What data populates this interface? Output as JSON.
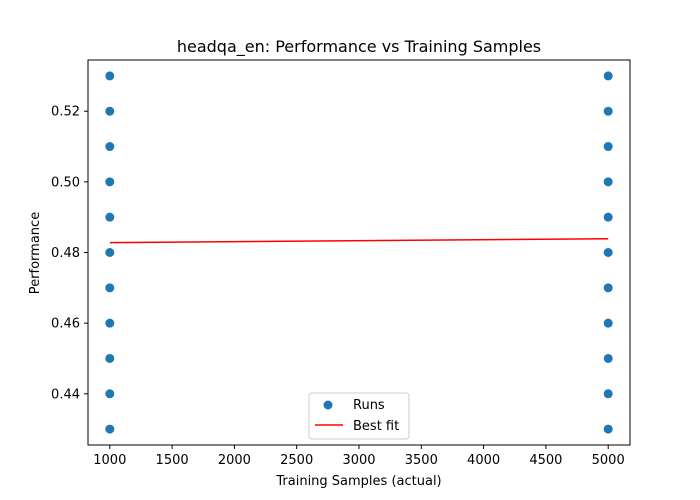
{
  "chart_data": {
    "type": "scatter",
    "title": "headqa_en: Performance vs Training Samples",
    "xlabel": "Training Samples (actual)",
    "ylabel": "Performance",
    "xlim": [
      825,
      5175
    ],
    "ylim": [
      0.4255,
      0.5345
    ],
    "xticks": [
      1000,
      1500,
      2000,
      2500,
      3000,
      3500,
      4000,
      4500,
      5000
    ],
    "yticks": [
      0.44,
      0.46,
      0.48,
      0.5,
      0.52
    ],
    "ytick_labels": [
      "0.44",
      "0.46",
      "0.48",
      "0.50",
      "0.52"
    ],
    "grid": false,
    "legend_position": "lower center",
    "series": [
      {
        "name": "Runs",
        "kind": "scatter",
        "color": "#1f77b4",
        "points": [
          [
            1000,
            0.53
          ],
          [
            1000,
            0.52
          ],
          [
            1000,
            0.51
          ],
          [
            1000,
            0.5
          ],
          [
            1000,
            0.49
          ],
          [
            1000,
            0.48
          ],
          [
            1000,
            0.47
          ],
          [
            1000,
            0.46
          ],
          [
            1000,
            0.45
          ],
          [
            1000,
            0.44
          ],
          [
            1000,
            0.43
          ],
          [
            5000,
            0.53
          ],
          [
            5000,
            0.52
          ],
          [
            5000,
            0.51
          ],
          [
            5000,
            0.5
          ],
          [
            5000,
            0.49
          ],
          [
            5000,
            0.48
          ],
          [
            5000,
            0.47
          ],
          [
            5000,
            0.46
          ],
          [
            5000,
            0.45
          ],
          [
            5000,
            0.44
          ],
          [
            5000,
            0.43
          ]
        ]
      },
      {
        "name": "Best fit",
        "kind": "line",
        "color": "#ff0000",
        "points": [
          [
            1000,
            0.4828
          ],
          [
            5000,
            0.4839
          ]
        ]
      }
    ]
  }
}
